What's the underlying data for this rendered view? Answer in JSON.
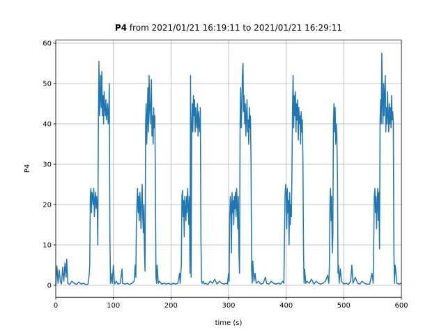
{
  "chart_data": {
    "type": "line",
    "title": {
      "bold": "P4",
      "text": "from 2021/01/21 16:19:11 to 2021/01/21 16:29:11"
    },
    "xlabel": "time (s)",
    "ylabel": "P4",
    "color": "#1f77b4",
    "grid": true,
    "xlim": [
      0,
      600
    ],
    "xticks": [
      0,
      100,
      200,
      300,
      400,
      500,
      600
    ],
    "ylim": [
      -2.97,
      60.76
    ],
    "yticks": [
      0,
      10,
      20,
      30,
      40,
      50,
      60
    ],
    "x": [
      0,
      2,
      4,
      6,
      8,
      10,
      12,
      14,
      16,
      18,
      19,
      21,
      24,
      28,
      32,
      36,
      40,
      44,
      48,
      52,
      56,
      58,
      59,
      60,
      61,
      62,
      63,
      64,
      65,
      66,
      67,
      68,
      69,
      70,
      71,
      72,
      73,
      74,
      75,
      76,
      77,
      78,
      79,
      80,
      81,
      82,
      83,
      84,
      85,
      86,
      87,
      88,
      89,
      90,
      91,
      92,
      93,
      94,
      95,
      96,
      98,
      100,
      102,
      105,
      108,
      112,
      115,
      116,
      120,
      124,
      128,
      132,
      136,
      138,
      139,
      140,
      141,
      142,
      143,
      144,
      145,
      146,
      147,
      148,
      149,
      150,
      151,
      152,
      153,
      154,
      155,
      156,
      157,
      158,
      159,
      160,
      161,
      162,
      163,
      164,
      165,
      166,
      167,
      168,
      169,
      170,
      171,
      172,
      173,
      174,
      175,
      176,
      178,
      180,
      184,
      188,
      192,
      196,
      200,
      204,
      208,
      212,
      215,
      216,
      218,
      219,
      220,
      221,
      222,
      223,
      224,
      225,
      226,
      227,
      228,
      229,
      230,
      231,
      232,
      233,
      234,
      235,
      236,
      237,
      238,
      239,
      240,
      241,
      242,
      243,
      244,
      245,
      246,
      247,
      248,
      249,
      250,
      251,
      252,
      253,
      254,
      256,
      258,
      260,
      264,
      268,
      272,
      276,
      280,
      284,
      288,
      292,
      296,
      298,
      300,
      301,
      302,
      303,
      304,
      305,
      306,
      307,
      308,
      309,
      310,
      311,
      312,
      313,
      314,
      315,
      316,
      317,
      318,
      319,
      320,
      321,
      322,
      323,
      324,
      325,
      326,
      327,
      328,
      329,
      330,
      331,
      332,
      333,
      334,
      335,
      336,
      337,
      338,
      339,
      340,
      341,
      342,
      344,
      346,
      348,
      352,
      356,
      360,
      364,
      366,
      370,
      374,
      378,
      382,
      386,
      390,
      394,
      396,
      398,
      399,
      400,
      401,
      402,
      403,
      404,
      405,
      406,
      407,
      408,
      409,
      410,
      411,
      412,
      413,
      414,
      415,
      416,
      417,
      418,
      419,
      420,
      421,
      422,
      423,
      424,
      425,
      426,
      427,
      428,
      429,
      430,
      431,
      432,
      434,
      436,
      440,
      444,
      448,
      452,
      456,
      460,
      464,
      468,
      472,
      474,
      475,
      476,
      477,
      478,
      479,
      480,
      481,
      482,
      483,
      484,
      485,
      486,
      487,
      488,
      489,
      490,
      491,
      492,
      494,
      496,
      500,
      504,
      508,
      512,
      514,
      516,
      520,
      524,
      528,
      532,
      536,
      540,
      545,
      549,
      551,
      553,
      554,
      555,
      556,
      557,
      558,
      559,
      560,
      561,
      562,
      563,
      564,
      565,
      566,
      567,
      568,
      569,
      570,
      571,
      572,
      573,
      574,
      575,
      576,
      577,
      578,
      579,
      580,
      581,
      582,
      583,
      584,
      585,
      586,
      587,
      588,
      589,
      590,
      592,
      596,
      600
    ],
    "values": [
      0,
      4.8,
      0.5,
      3.8,
      1,
      0.3,
      4.5,
      1,
      5.5,
      2,
      6.5,
      0.5,
      0.2,
      1,
      0.5,
      0.2,
      0.8,
      0.3,
      0.5,
      0.2,
      0.3,
      2.5,
      5,
      22,
      24,
      18,
      23,
      22,
      20,
      24,
      17,
      21,
      23,
      19,
      22,
      20,
      10,
      40,
      55.5,
      42,
      46,
      52,
      44,
      53,
      42,
      47,
      40,
      48,
      44,
      42,
      46,
      41,
      43,
      45,
      40,
      42,
      50,
      12,
      0.5,
      3,
      0.5,
      5,
      0.3,
      1,
      0.3,
      0.5,
      4,
      0.5,
      0.3,
      0.5,
      0.2,
      0.5,
      1,
      5,
      2,
      15,
      20,
      24,
      18,
      22,
      16,
      23,
      19,
      14,
      21,
      25,
      17,
      13,
      20,
      8,
      3.5,
      40,
      45,
      35,
      42,
      49,
      38,
      52,
      44,
      40,
      46,
      51,
      37,
      42,
      35,
      44,
      39,
      42,
      25,
      2,
      0.5,
      5,
      0.5,
      1,
      0.3,
      0.5,
      0.3,
      0.5,
      0.2,
      0.5,
      0.3,
      0.5,
      3,
      0.5,
      5,
      22,
      23.5,
      17,
      21,
      12,
      22,
      19,
      16,
      22,
      18,
      24,
      20,
      15,
      22,
      3,
      52,
      2,
      40,
      45,
      38,
      47,
      42,
      46,
      38,
      44,
      41,
      39,
      45,
      37,
      43,
      40,
      38,
      44,
      12,
      1,
      0.5,
      1,
      0.3,
      0.5,
      0.2,
      1,
      0.5,
      1.5,
      0.3,
      1,
      0.5,
      0.3,
      0.5,
      0.3,
      3,
      1,
      17,
      22,
      20,
      8,
      23,
      18,
      21,
      15,
      22,
      19,
      23,
      17,
      24,
      20,
      14,
      22,
      8,
      3,
      40,
      49,
      39,
      44,
      52,
      55,
      43,
      47,
      40,
      45,
      37,
      42,
      46,
      38,
      41,
      35,
      44,
      39,
      42,
      30,
      4,
      0.5,
      6,
      1,
      3,
      0.5,
      1,
      0.3,
      0.5,
      2,
      0.5,
      0.3,
      1,
      0.5,
      0.3,
      0.5,
      0.3,
      1,
      0.5,
      22,
      25,
      23,
      14,
      24,
      18,
      21,
      10,
      23,
      15,
      20,
      17,
      28,
      44,
      52,
      39,
      47,
      42,
      48,
      38,
      45,
      41,
      46,
      36,
      44,
      40,
      42,
      35,
      43,
      38,
      41,
      32,
      10,
      0.5,
      4,
      0.5,
      1,
      0.5,
      1.5,
      0.3,
      1,
      0.5,
      0.3,
      0.5,
      1,
      2.5,
      0.5,
      5,
      20,
      24,
      16,
      22,
      8,
      12,
      40,
      45,
      38,
      44,
      35,
      40,
      37,
      27,
      3,
      5,
      0.5,
      4,
      1,
      0.3,
      0.5,
      0.2,
      1,
      5,
      0.5,
      2,
      0.5,
      0.3,
      1,
      0.5,
      0.3,
      0.3,
      3,
      0.5,
      22,
      24,
      18,
      22,
      14,
      20,
      24,
      16,
      23,
      9,
      41,
      46,
      40,
      57.5,
      45,
      40,
      50,
      42,
      48,
      52,
      38,
      44,
      40,
      48,
      42,
      38,
      45,
      40,
      44,
      39,
      47,
      41,
      43,
      40,
      8,
      0.5,
      5,
      4,
      0.5,
      0.3,
      0.5
    ]
  }
}
